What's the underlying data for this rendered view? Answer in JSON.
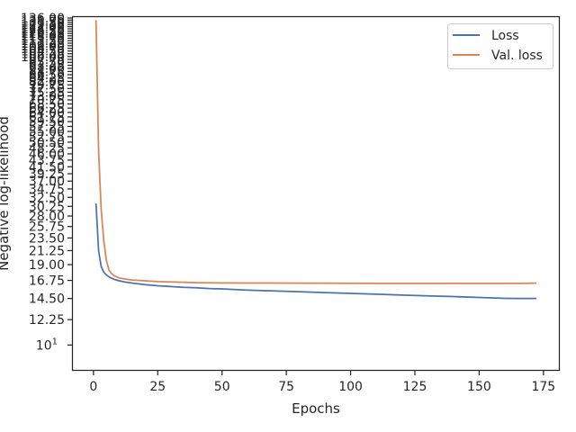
{
  "chart_data": {
    "type": "line",
    "xlabel": "Epochs",
    "ylabel": "Negative log-likelihood",
    "xscale": "linear",
    "yscale": "log",
    "xlim": [
      -8,
      181
    ],
    "ylim": [
      8.2,
      137
    ],
    "x_ticks": [
      0,
      25,
      50,
      75,
      100,
      125,
      150,
      175
    ],
    "y_ticks": [
      {
        "value": 10,
        "label": "10",
        "exponent": "1"
      },
      {
        "value": 12.25,
        "label": "12.25"
      },
      {
        "value": 14.5,
        "label": "14.50"
      },
      {
        "value": 16.75,
        "label": "16.75"
      },
      {
        "value": 19.0,
        "label": "19.00"
      },
      {
        "value": 21.25,
        "label": "21.25"
      },
      {
        "value": 23.5,
        "label": "23.50"
      },
      {
        "value": 25.75,
        "label": "25.75"
      },
      {
        "value": 28.0,
        "label": "28.00"
      },
      {
        "value": 30.25,
        "label": "30.25"
      },
      {
        "value": 32.5,
        "label": "32.50"
      },
      {
        "value": 34.75,
        "label": "34.75"
      },
      {
        "value": 37.0,
        "label": "37.00"
      },
      {
        "value": 39.25,
        "label": "39.25"
      },
      {
        "value": 41.5,
        "label": "41.50"
      },
      {
        "value": 43.75,
        "label": "43.75"
      },
      {
        "value": 46.0,
        "label": "46.00"
      },
      {
        "value": 48.25,
        "label": "48.25"
      },
      {
        "value": 50.5,
        "label": "50.50"
      },
      {
        "value": 52.75,
        "label": "52.75"
      },
      {
        "value": 55.0,
        "label": "55.00"
      },
      {
        "value": 57.25,
        "label": "57.25"
      },
      {
        "value": 59.5,
        "label": "59.50"
      },
      {
        "value": 61.75,
        "label": "61.75"
      },
      {
        "value": 64.0,
        "label": "64.00"
      },
      {
        "value": 66.25,
        "label": "66.25"
      },
      {
        "value": 68.5,
        "label": "68.50"
      },
      {
        "value": 70.75,
        "label": "70.75"
      },
      {
        "value": 73.0,
        "label": "73.00"
      },
      {
        "value": 75.25,
        "label": "75.25"
      },
      {
        "value": 77.5,
        "label": "77.50"
      },
      {
        "value": 79.75,
        "label": "79.75"
      },
      {
        "value": 82.0,
        "label": "82.00"
      },
      {
        "value": 84.25,
        "label": "84.25"
      },
      {
        "value": 86.5,
        "label": "86.50"
      },
      {
        "value": 88.75,
        "label": "88.75"
      },
      {
        "value": 91.0,
        "label": "91.00"
      },
      {
        "value": 93.25,
        "label": "93.25"
      },
      {
        "value": 95.5,
        "label": "95.50"
      },
      {
        "value": 97.75,
        "label": "97.75"
      },
      {
        "value": 100.0,
        "label": "100.00"
      },
      {
        "value": 102.25,
        "label": "102.25"
      },
      {
        "value": 104.5,
        "label": "104.50"
      },
      {
        "value": 106.75,
        "label": "106.75"
      },
      {
        "value": 109.0,
        "label": "109.00"
      },
      {
        "value": 111.25,
        "label": "111.25"
      },
      {
        "value": 113.5,
        "label": "113.50"
      },
      {
        "value": 115.75,
        "label": "115.75"
      },
      {
        "value": 118.0,
        "label": "118.00"
      },
      {
        "value": 120.25,
        "label": "120.25"
      },
      {
        "value": 122.5,
        "label": "122.50"
      },
      {
        "value": 124.75,
        "label": "124.75"
      },
      {
        "value": 127.0,
        "label": "127.00"
      },
      {
        "value": 129.25,
        "label": "129.25"
      },
      {
        "value": 131.5,
        "label": "131.50"
      },
      {
        "value": 133.75,
        "label": "133.75"
      },
      {
        "value": 136.0,
        "label": "136.00"
      }
    ],
    "grid": false,
    "legend": "top-right",
    "series": [
      {
        "name": "Loss",
        "color": "#4c72b0",
        "x": [
          1,
          2,
          3,
          4,
          5,
          6,
          7,
          8,
          10,
          12,
          15,
          20,
          25,
          30,
          35,
          40,
          45,
          50,
          60,
          70,
          80,
          90,
          100,
          110,
          120,
          130,
          140,
          150,
          160,
          165,
          172
        ],
        "y": [
          30.8,
          21.2,
          18.7,
          17.9,
          17.5,
          17.25,
          17.05,
          16.9,
          16.7,
          16.55,
          16.4,
          16.2,
          16.05,
          15.95,
          15.85,
          15.8,
          15.7,
          15.65,
          15.5,
          15.4,
          15.3,
          15.2,
          15.1,
          15.0,
          14.9,
          14.8,
          14.72,
          14.62,
          14.52,
          14.5,
          14.5
        ]
      },
      {
        "name": "Val. loss",
        "color": "#dd8452",
        "x": [
          1,
          2,
          3,
          4,
          5,
          6,
          7,
          8,
          10,
          12,
          15,
          20,
          25,
          30,
          35,
          40,
          50,
          60,
          70,
          80,
          90,
          100,
          110,
          120,
          130,
          140,
          150,
          160,
          165,
          172
        ],
        "y": [
          133,
          47,
          29.5,
          23,
          19.7,
          18.2,
          17.7,
          17.4,
          17.1,
          16.95,
          16.8,
          16.7,
          16.6,
          16.55,
          16.5,
          16.45,
          16.42,
          16.4,
          16.4,
          16.38,
          16.38,
          16.37,
          16.36,
          16.36,
          16.35,
          16.35,
          16.35,
          16.35,
          16.36,
          16.38
        ]
      }
    ]
  }
}
